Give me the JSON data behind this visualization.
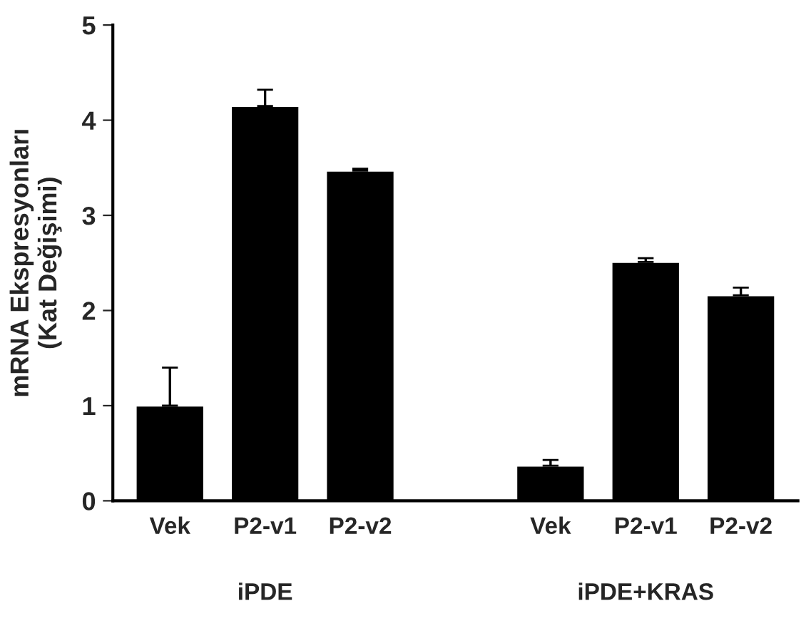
{
  "chart_data": {
    "type": "bar",
    "ylabel": "mRNA Ekspresyonları\n(Kat Değişimi)",
    "categories": [
      "Vek",
      "P2-v1",
      "P2-v2",
      null,
      "Vek",
      "P2-v1",
      "P2-v2"
    ],
    "values": [
      1.0,
      4.15,
      3.47,
      null,
      0.37,
      2.51,
      2.16
    ],
    "errors": [
      [
        1.0,
        1.4
      ],
      [
        4.15,
        4.32
      ],
      [
        3.47,
        3.49
      ],
      null,
      [
        0.37,
        0.43
      ],
      [
        2.51,
        2.55
      ],
      [
        2.16,
        2.24
      ]
    ],
    "color": "#000000",
    "ylim": [
      0,
      5
    ],
    "yticks": [
      0,
      1,
      2,
      3,
      4,
      5
    ],
    "grid": false,
    "annotations": [
      "iPDE",
      "iPDE+KRAS"
    ]
  }
}
